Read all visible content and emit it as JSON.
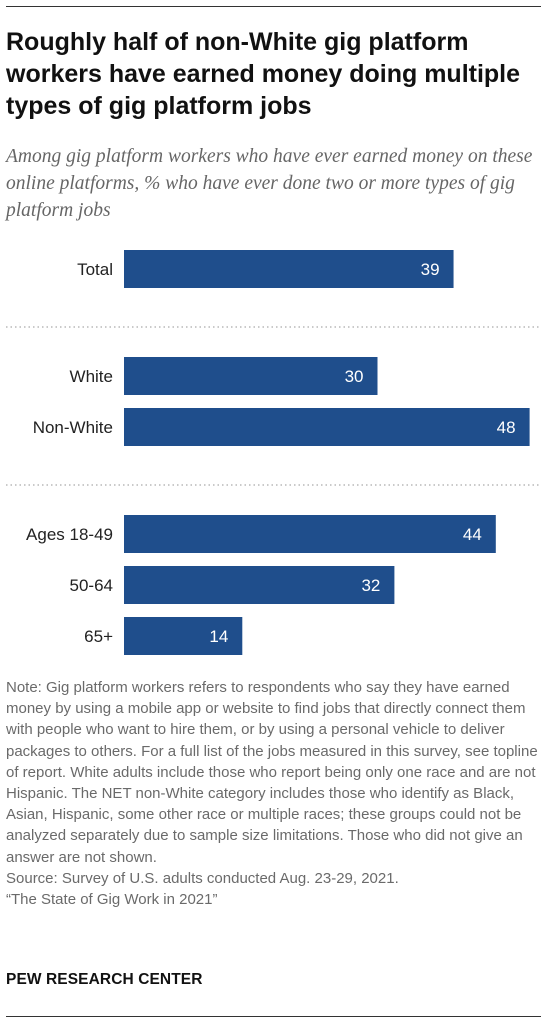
{
  "title": "Roughly half of non-White gig platform workers have earned money doing multiple types of gig platform jobs",
  "subtitle": "Among gig platform workers who have ever earned money on these online platforms, % who have ever done two or more types of gig platform jobs",
  "chart_data": {
    "type": "bar",
    "orientation": "horizontal",
    "title": "",
    "xlabel": "",
    "ylabel": "",
    "xlim": [
      0,
      50
    ],
    "grid": false,
    "bar_color": "#1f4e8c",
    "label_color": "#ffffff",
    "groups": [
      {
        "categories": [
          "Total"
        ],
        "values": [
          39
        ]
      },
      {
        "categories": [
          "White",
          "Non-White"
        ],
        "values": [
          30,
          48
        ]
      },
      {
        "categories": [
          "Ages 18-49",
          "50-64",
          "65+"
        ],
        "values": [
          44,
          32,
          14
        ]
      }
    ]
  },
  "note": "Note: Gig platform workers refers to respondents who say they have earned money by using a mobile app or website to find jobs that directly connect them with people who want to hire them, or by using a personal vehicle to deliver packages to others. For a full list of the jobs measured in this survey, see topline of report. White adults include those who report being only one race and are not Hispanic. The NET non-White category includes those who identify as Black, Asian, Hispanic, some other race or multiple races; these groups could not be analyzed separately due to sample size limitations. Those who did not give an answer are not shown.",
  "source": "Source: Survey of U.S. adults conducted Aug. 23-29, 2021.",
  "report": "“The State of Gig Work in 2021”",
  "brand": "PEW RESEARCH CENTER"
}
